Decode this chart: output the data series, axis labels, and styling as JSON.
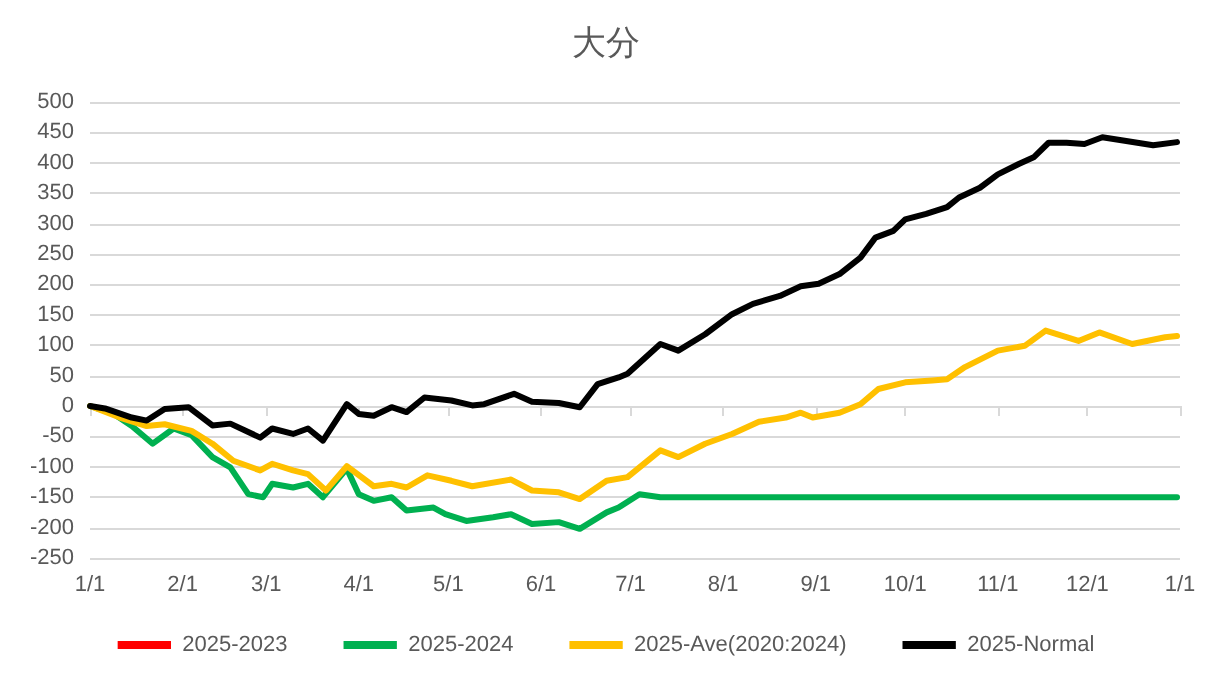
{
  "chart_data": {
    "type": "line",
    "title": "大分",
    "xlim": [
      "2025-01-01",
      "2026-01-01"
    ],
    "xticks": [
      {
        "value": "2025-01-01",
        "label": "1/1"
      },
      {
        "value": "2025-02-01",
        "label": "2/1"
      },
      {
        "value": "2025-03-01",
        "label": "3/1"
      },
      {
        "value": "2025-04-01",
        "label": "4/1"
      },
      {
        "value": "2025-05-01",
        "label": "5/1"
      },
      {
        "value": "2025-06-01",
        "label": "6/1"
      },
      {
        "value": "2025-07-01",
        "label": "7/1"
      },
      {
        "value": "2025-08-01",
        "label": "8/1"
      },
      {
        "value": "2025-09-01",
        "label": "9/1"
      },
      {
        "value": "2025-10-01",
        "label": "10/1"
      },
      {
        "value": "2025-11-01",
        "label": "11/1"
      },
      {
        "value": "2025-12-01",
        "label": "12/1"
      },
      {
        "value": "2026-01-01",
        "label": "1/1"
      }
    ],
    "ylim": [
      -250,
      500
    ],
    "yticks": [
      -250,
      -200,
      -150,
      -100,
      -50,
      0,
      50,
      100,
      150,
      200,
      250,
      300,
      350,
      400,
      450,
      500
    ],
    "grid": "y",
    "legend": "bottom",
    "marker": "none",
    "line_style": "solid",
    "series": [
      {
        "name": "2025-2023",
        "color": "#ff0000"
      },
      {
        "name": "2025-2024",
        "color": "#00b050",
        "x": [
          "2025-01-01",
          "2025-01-09",
          "2025-01-15",
          "2025-01-22",
          "2025-01-29",
          "2025-02-04",
          "2025-02-11",
          "2025-02-17",
          "2025-02-23",
          "2025-02-28",
          "2025-03-03",
          "2025-03-10",
          "2025-03-15",
          "2025-03-20",
          "2025-03-28",
          "2025-04-01",
          "2025-04-06",
          "2025-04-12",
          "2025-04-17",
          "2025-04-26",
          "2025-04-30",
          "2025-05-07",
          "2025-05-16",
          "2025-05-22",
          "2025-05-29",
          "2025-06-07",
          "2025-06-14",
          "2025-06-23",
          "2025-06-27",
          "2025-07-04",
          "2025-07-11",
          "2025-12-31"
        ],
        "values": [
          0,
          -13,
          -33,
          -62,
          -37,
          -48,
          -84,
          -101,
          -145,
          -150,
          -128,
          -134,
          -128,
          -150,
          -103,
          -145,
          -156,
          -150,
          -172,
          -167,
          -178,
          -189,
          -183,
          -178,
          -194,
          -191,
          -202,
          -175,
          -167,
          -145,
          -150,
          -150
        ]
      },
      {
        "name": "2025-Ave(2020:2024)",
        "color": "#ffc000",
        "x": [
          "2025-01-01",
          "2025-01-11",
          "2025-01-20",
          "2025-01-26",
          "2025-02-04",
          "2025-02-11",
          "2025-02-18",
          "2025-02-27",
          "2025-03-03",
          "2025-03-10",
          "2025-03-15",
          "2025-03-21",
          "2025-03-28",
          "2025-04-06",
          "2025-04-12",
          "2025-04-17",
          "2025-04-24",
          "2025-05-02",
          "2025-05-09",
          "2025-05-22",
          "2025-05-29",
          "2025-06-07",
          "2025-06-14",
          "2025-06-23",
          "2025-06-30",
          "2025-07-11",
          "2025-07-17",
          "2025-07-26",
          "2025-08-04",
          "2025-08-13",
          "2025-08-22",
          "2025-08-27",
          "2025-08-31",
          "2025-09-09",
          "2025-09-16",
          "2025-09-22",
          "2025-10-01",
          "2025-10-10",
          "2025-10-15",
          "2025-10-21",
          "2025-11-01",
          "2025-11-10",
          "2025-11-17",
          "2025-11-28",
          "2025-12-05",
          "2025-12-16",
          "2025-12-27",
          "2025-12-31"
        ],
        "values": [
          0,
          -19,
          -33,
          -30,
          -41,
          -62,
          -90,
          -106,
          -95,
          -106,
          -112,
          -139,
          -99,
          -132,
          -128,
          -134,
          -114,
          -123,
          -132,
          -121,
          -139,
          -142,
          -153,
          -123,
          -117,
          -73,
          -84,
          -62,
          -46,
          -26,
          -19,
          -11,
          -19,
          -11,
          3,
          28,
          39,
          42,
          44,
          64,
          91,
          99,
          124,
          107,
          121,
          102,
          113,
          115
        ]
      },
      {
        "name": "2025-Normal",
        "color": "#000000",
        "x": [
          "2025-01-01",
          "2025-01-06",
          "2025-01-15",
          "2025-01-20",
          "2025-01-26",
          "2025-02-03",
          "2025-02-11",
          "2025-02-17",
          "2025-02-27",
          "2025-03-03",
          "2025-03-10",
          "2025-03-15",
          "2025-03-20",
          "2025-03-28",
          "2025-04-01",
          "2025-04-06",
          "2025-04-12",
          "2025-04-17",
          "2025-04-23",
          "2025-05-02",
          "2025-05-09",
          "2025-05-13",
          "2025-05-23",
          "2025-05-29",
          "2025-06-07",
          "2025-06-14",
          "2025-06-20",
          "2025-06-27",
          "2025-06-30",
          "2025-07-11",
          "2025-07-17",
          "2025-07-26",
          "2025-08-04",
          "2025-08-11",
          "2025-08-20",
          "2025-08-27",
          "2025-09-02",
          "2025-09-09",
          "2025-09-16",
          "2025-09-21",
          "2025-09-27",
          "2025-10-01",
          "2025-10-08",
          "2025-10-15",
          "2025-10-19",
          "2025-10-26",
          "2025-11-01",
          "2025-11-08",
          "2025-11-13",
          "2025-11-18",
          "2025-11-24",
          "2025-11-30",
          "2025-12-06",
          "2025-12-14",
          "2025-12-23",
          "2025-12-31"
        ],
        "values": [
          0,
          -4,
          -19,
          -24,
          -5,
          -2,
          -32,
          -29,
          -52,
          -37,
          -46,
          -37,
          -57,
          3,
          -13,
          -16,
          -2,
          -10,
          14,
          9,
          1,
          3,
          20,
          7,
          5,
          -2,
          36,
          47,
          53,
          102,
          91,
          118,
          151,
          168,
          181,
          197,
          201,
          217,
          244,
          277,
          288,
          307,
          316,
          327,
          343,
          359,
          381,
          398,
          409,
          433,
          433,
          431,
          442,
          436,
          429,
          434
        ]
      }
    ]
  }
}
